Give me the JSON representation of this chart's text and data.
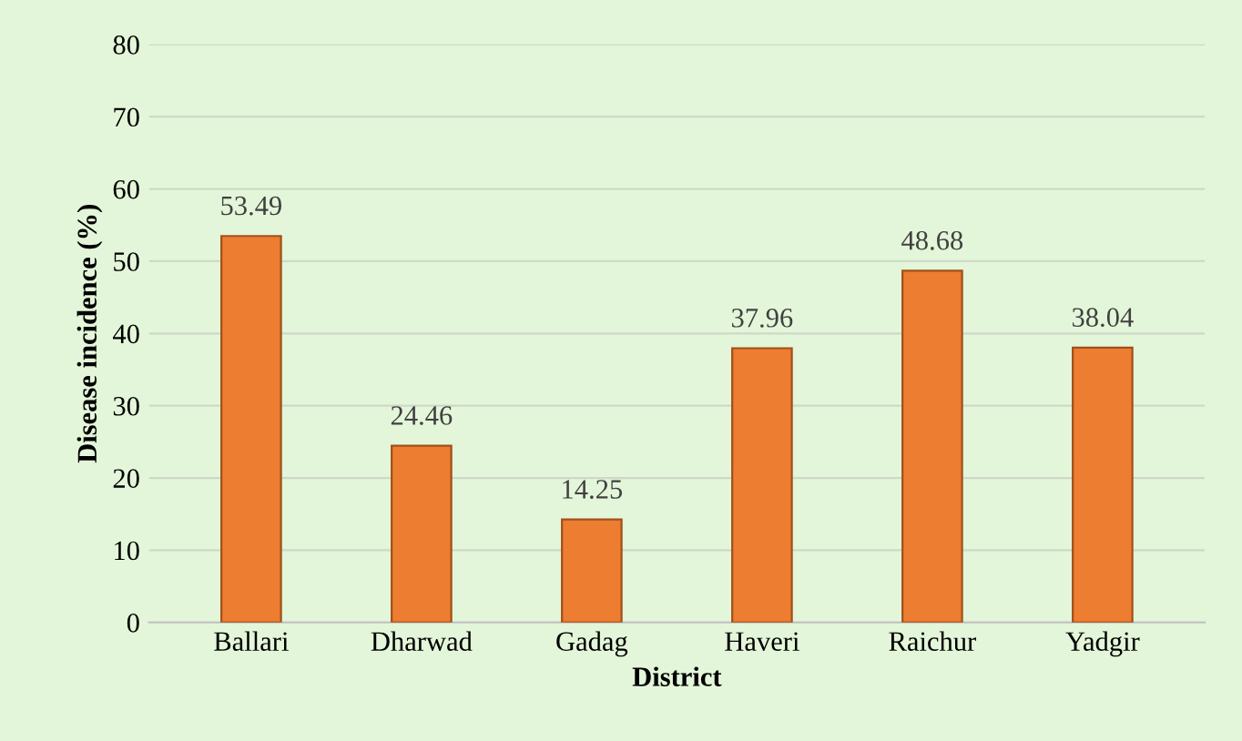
{
  "chart_data": {
    "type": "bar",
    "xlabel": "District",
    "ylabel": "Disease incidence (%)",
    "categories": [
      "Ballari",
      "Dharwad",
      "Gadag",
      "Haveri",
      "Raichur",
      "Yadgir"
    ],
    "values": [
      53.49,
      24.46,
      14.25,
      37.96,
      48.68,
      38.04
    ],
    "color": "#ed7d31",
    "ylim": [
      0,
      80
    ],
    "yticks": [
      0,
      10,
      20,
      30,
      40,
      50,
      60,
      70,
      80
    ],
    "grid": "y",
    "data_labels": true
  }
}
